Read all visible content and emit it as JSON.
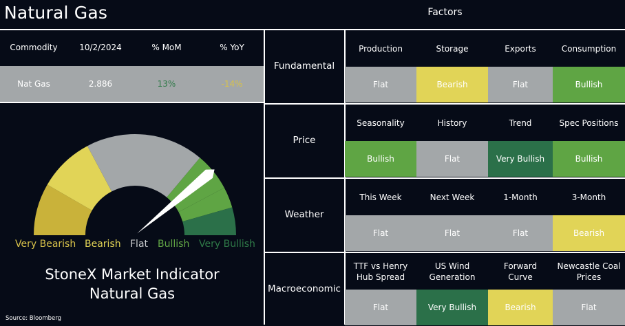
{
  "header": {
    "title": "Natural Gas",
    "factors_title": "Factors"
  },
  "commodity_table": {
    "columns": [
      "Commodity",
      "10/2/2024",
      "% MoM",
      "% YoY"
    ],
    "row": {
      "commodity": "Nat Gas",
      "price": "2.886",
      "mom": "13%",
      "yoy": "-14%"
    }
  },
  "gauge": {
    "labels": [
      "Very Bearish",
      "Bearish",
      "Flat",
      "Bullish",
      "Very Bullish"
    ],
    "needle_value": 0.78,
    "title_line1": "StoneX Market Indicator",
    "title_line2": "Natural Gas",
    "source": "Source: Bloomberg"
  },
  "factors": [
    {
      "category": "Fundamental",
      "items": [
        {
          "label_lines": [
            "Production"
          ],
          "value": "Flat"
        },
        {
          "label_lines": [
            "Storage"
          ],
          "value": "Bearish"
        },
        {
          "label_lines": [
            "Exports"
          ],
          "value": "Flat"
        },
        {
          "label_lines": [
            "Consumption"
          ],
          "value": "Bullish"
        }
      ]
    },
    {
      "category": "Price",
      "items": [
        {
          "label_lines": [
            "Seasonality"
          ],
          "value": "Bullish"
        },
        {
          "label_lines": [
            "History"
          ],
          "value": "Flat"
        },
        {
          "label_lines": [
            "Trend"
          ],
          "value": "Very Bullish"
        },
        {
          "label_lines": [
            "Spec Positions"
          ],
          "value": "Bullish"
        }
      ]
    },
    {
      "category": "Weather",
      "items": [
        {
          "label_lines": [
            "This Week"
          ],
          "value": "Flat"
        },
        {
          "label_lines": [
            "Next Week"
          ],
          "value": "Flat"
        },
        {
          "label_lines": [
            "1-Month"
          ],
          "value": "Flat"
        },
        {
          "label_lines": [
            "3-Month"
          ],
          "value": "Bearish"
        }
      ]
    },
    {
      "category": "Macroeconomic",
      "items": [
        {
          "label_lines": [
            "TTF vs Henry",
            "Hub Spread"
          ],
          "value": "Flat"
        },
        {
          "label_lines": [
            "US Wind",
            "Generation"
          ],
          "value": "Very Bullish"
        },
        {
          "label_lines": [
            "Forward",
            "Curve"
          ],
          "value": "Bearish"
        },
        {
          "label_lines": [
            "Newcastle Coal",
            "Prices"
          ],
          "value": "Flat"
        }
      ]
    }
  ],
  "colors": {
    "Flat": "#a3a7a9",
    "Bearish": "#e1d457",
    "Very Bearish": "#c9b23a",
    "Bullish": "#5fa544",
    "Very Bullish": "#2b7049",
    "background": "#060b17"
  }
}
